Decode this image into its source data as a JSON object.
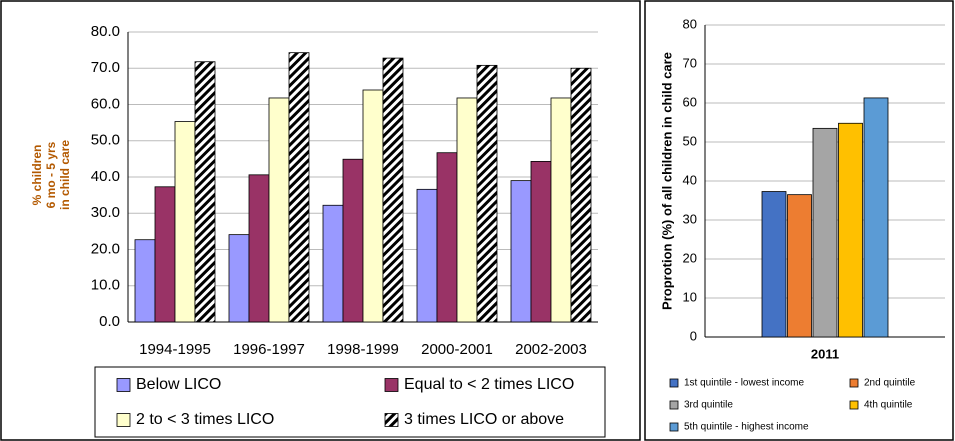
{
  "chart_data": [
    {
      "type": "bar",
      "ylabel": [
        "% children",
        "6 mo - 5 yrs",
        "in child care"
      ],
      "categories": [
        "1994-1995",
        "1996-1997",
        "1998-1999",
        "2000-2001",
        "2002-2003"
      ],
      "series": [
        {
          "name": "Below LICO",
          "color": "#9999ff",
          "values": [
            22.7,
            24.1,
            32.2,
            36.6,
            39.0
          ]
        },
        {
          "name": "Equal to < 2 times LICO",
          "color": "#993366",
          "values": [
            37.3,
            40.6,
            44.9,
            46.7,
            44.3
          ]
        },
        {
          "name": "2 to < 3 times LICO",
          "color": "#ffffcc",
          "values": [
            55.3,
            61.8,
            64.0,
            61.8,
            61.8
          ]
        },
        {
          "name": "3 times LICO or above",
          "color": "#ffffff",
          "pattern": "diagonal-hatch",
          "values": [
            71.8,
            74.3,
            72.8,
            70.8,
            70.0
          ]
        }
      ],
      "ylim": [
        0,
        80
      ],
      "yticks": [
        {
          "value": 0,
          "label": "0.0"
        },
        {
          "value": 10,
          "label": "10.0"
        },
        {
          "value": 20,
          "label": "20.0"
        },
        {
          "value": 30,
          "label": "30.0"
        },
        {
          "value": 40,
          "label": "40.0"
        },
        {
          "value": 50,
          "label": "50.0"
        },
        {
          "value": 60,
          "label": "60.0"
        },
        {
          "value": 70,
          "label": "70.0"
        },
        {
          "value": 80,
          "label": "80.0"
        }
      ],
      "grid": true
    },
    {
      "type": "bar",
      "ylabel": "Proprotion (%) of all children in child care",
      "categories": [
        "2011"
      ],
      "series": [
        {
          "name": "1st quintile - lowest income",
          "color": "#4472c4",
          "values": [
            37.3
          ]
        },
        {
          "name": "2nd quintile",
          "color": "#ed7d31",
          "values": [
            36.5
          ]
        },
        {
          "name": "3rd quintile",
          "color": "#a5a5a5",
          "values": [
            53.5
          ]
        },
        {
          "name": "4th quintile",
          "color": "#ffc000",
          "values": [
            54.8
          ]
        },
        {
          "name": "5th quintile - highest income",
          "color": "#5b9bd5",
          "values": [
            61.3
          ]
        }
      ],
      "ylim": [
        0,
        80
      ],
      "yticks": [
        0,
        10,
        20,
        30,
        40,
        50,
        60,
        70,
        80
      ],
      "grid": true
    }
  ]
}
